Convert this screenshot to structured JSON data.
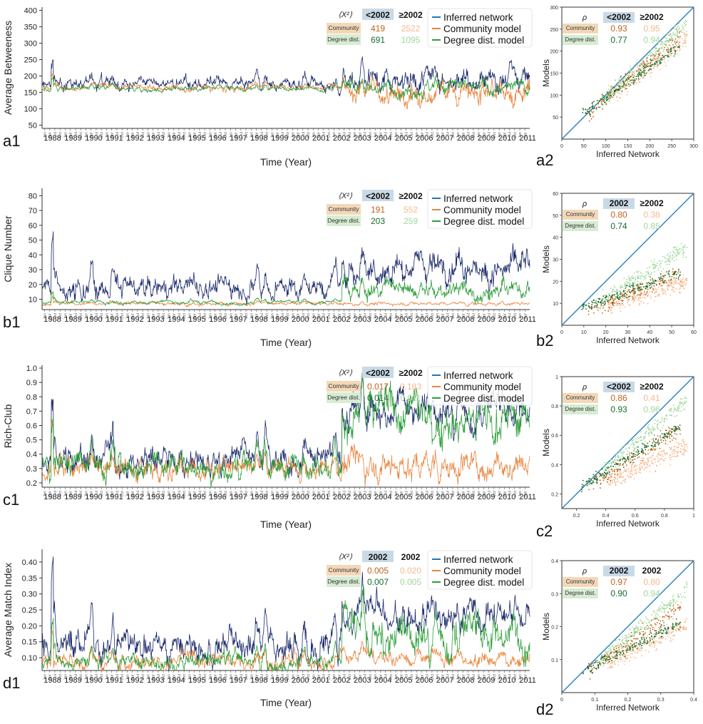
{
  "colors": {
    "inferred": "#1b2a6b",
    "inferred_legend": "#1f77b4",
    "community": "#e9853e",
    "community_light": "#f6b98c",
    "community_dark": "#c0621a",
    "degree": "#2e9e3a",
    "degree_light": "#9fd89a",
    "degree_dark": "#176b2a",
    "diag": "#2a7fc0",
    "hdr_bg": "#c9d9e6",
    "comm_bg": "#f3d8b8",
    "deg_bg": "#d7ecd2"
  },
  "time_axis": {
    "xlabel": "Time (Year)",
    "years": [
      "1988",
      "1989",
      "1990",
      "1991",
      "1992",
      "1993",
      "1994",
      "1995",
      "1996",
      "1997",
      "1998",
      "1999",
      "2000",
      "2001",
      "2002",
      "2003",
      "2004",
      "2005",
      "2006",
      "2007",
      "2008",
      "2009",
      "2010",
      "2011"
    ],
    "months": [
      "Jan",
      "Apr",
      "Jul",
      "Oct"
    ],
    "xlim": [
      1987.5,
      2011.1
    ]
  },
  "legend": {
    "inferred": "Inferred network",
    "community": "Community model",
    "degree": "Degree dist. model"
  },
  "chart_data": [
    {
      "type": "line",
      "panel": "a1",
      "ylabel": "Average Betweeness",
      "ylim": [
        40,
        410
      ],
      "yticks": [
        50,
        100,
        150,
        200,
        250,
        300,
        350,
        400
      ],
      "series": [
        {
          "name": "Inferred network",
          "level_pre": 175,
          "level_post": 195,
          "noise_pre": 15,
          "noise_post": 30
        },
        {
          "name": "Community model",
          "level_pre": 165,
          "level_post": 150,
          "noise_pre": 8,
          "noise_post": 30
        },
        {
          "name": "Degree dist. model",
          "level_pre": 162,
          "level_post": 165,
          "noise_pre": 6,
          "noise_post": 18
        }
      ],
      "table": {
        "stat": "⟨X²⟩",
        "cols": [
          "<2002",
          "≥2002"
        ],
        "rows": [
          {
            "label": "Community",
            "values": [
              "419",
              "2522"
            ]
          },
          {
            "label": "Degree dist.",
            "values": [
              "691",
              "1095"
            ]
          }
        ]
      }
    },
    {
      "type": "line",
      "panel": "b1",
      "ylabel": "Clique Number",
      "ylim": [
        3,
        85
      ],
      "yticks": [
        10,
        20,
        30,
        40,
        50,
        60,
        70,
        80
      ],
      "series": [
        {
          "name": "Inferred network",
          "level_pre": 18,
          "level_post": 32,
          "noise_pre": 6,
          "noise_post": 8
        },
        {
          "name": "Community model",
          "level_pre": 7,
          "level_post": 7,
          "noise_pre": 1,
          "noise_post": 1
        },
        {
          "name": "Degree dist. model",
          "level_pre": 8,
          "level_post": 16,
          "noise_pre": 1,
          "noise_post": 5
        }
      ],
      "table": {
        "stat": "⟨X²⟩",
        "cols": [
          "<2002",
          "≥2002"
        ],
        "rows": [
          {
            "label": "Community",
            "values": [
              "191",
              "552"
            ]
          },
          {
            "label": "Degree dist.",
            "values": [
              "203",
              "259"
            ]
          }
        ]
      }
    },
    {
      "type": "line",
      "panel": "c1",
      "ylabel": "Rich-Club",
      "ylim": [
        0.17,
        1.02
      ],
      "yticks": [
        0.2,
        0.3,
        0.4,
        0.5,
        0.6,
        0.7,
        0.8,
        0.9,
        1.0
      ],
      "series": [
        {
          "name": "Inferred network",
          "level_pre": 0.36,
          "level_post": 0.72,
          "noise_pre": 0.08,
          "noise_post": 0.1
        },
        {
          "name": "Community model",
          "level_pre": 0.3,
          "level_post": 0.33,
          "noise_pre": 0.06,
          "noise_post": 0.08
        },
        {
          "name": "Degree dist. model",
          "level_pre": 0.32,
          "level_post": 0.66,
          "noise_pre": 0.07,
          "noise_post": 0.12
        }
      ],
      "table": {
        "stat": "⟨X²⟩",
        "cols": [
          "<2002",
          "≥2002"
        ],
        "rows": [
          {
            "label": "Community",
            "values": [
              "0.017",
              "0.183"
            ]
          },
          {
            "label": "Degree dist.",
            "values": [
              "0.014",
              "0.011"
            ]
          }
        ]
      }
    },
    {
      "type": "line",
      "panel": "d1",
      "ylabel": "Average Match Index",
      "ylim": [
        0.06,
        0.44
      ],
      "yticks": [
        0.1,
        0.15,
        0.2,
        0.25,
        0.3,
        0.35,
        0.4
      ],
      "series": [
        {
          "name": "Inferred network",
          "level_pre": 0.14,
          "level_post": 0.24,
          "noise_pre": 0.04,
          "noise_post": 0.04
        },
        {
          "name": "Community model",
          "level_pre": 0.09,
          "level_post": 0.1,
          "noise_pre": 0.02,
          "noise_post": 0.02
        },
        {
          "name": "Degree dist. model",
          "level_pre": 0.09,
          "level_post": 0.18,
          "noise_pre": 0.02,
          "noise_post": 0.05
        }
      ],
      "table": {
        "stat": "⟨X²⟩",
        "cols": [
          "2002",
          "2002"
        ],
        "rows": [
          {
            "label": "Community",
            "values": [
              "0.005",
              "0.020"
            ]
          },
          {
            "label": "Degree dist.",
            "values": [
              "0.007",
              "0.005"
            ]
          }
        ]
      }
    },
    {
      "type": "scatter",
      "panel": "a2",
      "xlabel": "Inferred Network",
      "ylabel": "Models",
      "xlim": [
        0,
        300
      ],
      "ylim": [
        0,
        300
      ],
      "xticks": [
        0,
        50,
        100,
        150,
        200,
        250,
        300
      ],
      "yticks": [
        50,
        100,
        150,
        200,
        250,
        300
      ],
      "table": {
        "stat": "ρ",
        "cols": [
          "<2002",
          "≥2002"
        ],
        "rows": [
          {
            "label": "Community",
            "values": [
              "0.93",
              "0.95"
            ]
          },
          {
            "label": "Degree dist.",
            "values": [
              "0.77",
              "0.94"
            ]
          }
        ]
      }
    },
    {
      "type": "scatter",
      "panel": "b2",
      "xlabel": "Inferred Network",
      "ylabel": "Models",
      "xlim": [
        0,
        60
      ],
      "ylim": [
        0,
        60
      ],
      "xticks": [
        0,
        10,
        20,
        30,
        40,
        50,
        60
      ],
      "yticks": [
        10,
        20,
        30,
        40,
        50,
        60
      ],
      "table": {
        "stat": "ρ",
        "cols": [
          "2002",
          "≥2002"
        ],
        "rows": [
          {
            "label": "Community",
            "values": [
              "0.80",
              "0.38"
            ]
          },
          {
            "label": "Degree dist.",
            "values": [
              "0.74",
              "0.85"
            ]
          }
        ]
      }
    },
    {
      "type": "scatter",
      "panel": "c2",
      "xlabel": "Inferred Network",
      "ylabel": "Models",
      "xlim": [
        0.1,
        1
      ],
      "ylim": [
        0.1,
        1
      ],
      "xticks": [
        0.2,
        0.4,
        0.6,
        0.8,
        1
      ],
      "yticks": [
        0.2,
        0.4,
        0.6,
        0.8,
        1
      ],
      "table": {
        "stat": "ρ",
        "cols": [
          "<2002",
          "≥2002"
        ],
        "rows": [
          {
            "label": "Community",
            "values": [
              "0.86",
              "0.41"
            ]
          },
          {
            "label": "Degree dist.",
            "values": [
              "0.93",
              "0.96"
            ]
          }
        ]
      }
    },
    {
      "type": "scatter",
      "panel": "d2",
      "xlabel": "Inferred Network",
      "ylabel": "Models",
      "xlim": [
        0,
        0.4
      ],
      "ylim": [
        0,
        0.4
      ],
      "xticks": [
        0,
        0.1,
        0.2,
        0.3,
        0.4
      ],
      "yticks": [
        0.1,
        0.2,
        0.3,
        0.4
      ],
      "table": {
        "stat": "ρ",
        "cols": [
          "2002",
          "2002"
        ],
        "rows": [
          {
            "label": "Community",
            "values": [
              "0.97",
              "0.80"
            ]
          },
          {
            "label": "Degree dist.",
            "values": [
              "0.90",
              "0.94"
            ]
          }
        ]
      }
    }
  ]
}
